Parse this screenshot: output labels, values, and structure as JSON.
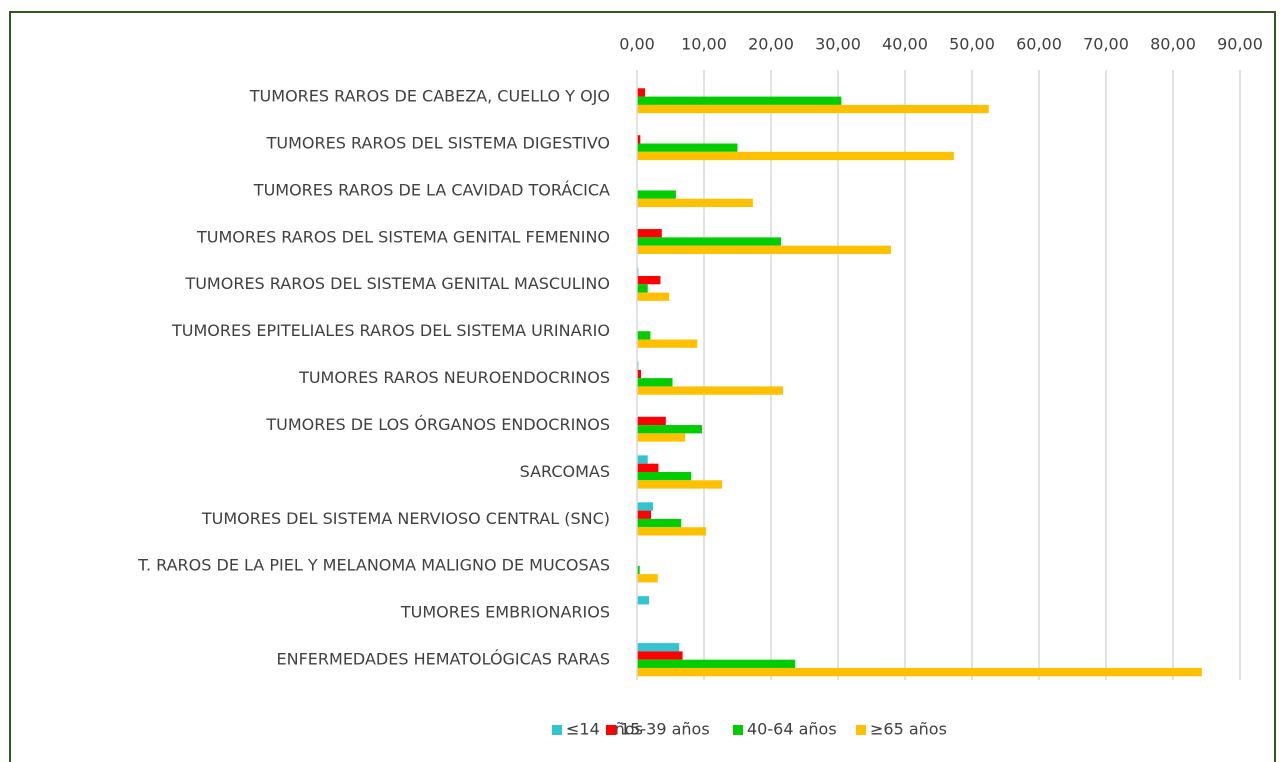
{
  "chart_data": {
    "type": "hbar",
    "categories": [
      "TUMORES RAROS DE CABEZA, CUELLO Y OJO",
      "TUMORES RAROS DEL SISTEMA DIGESTIVO",
      "TUMORES RAROS DE LA CAVIDAD TORÁCICA",
      "TUMORES RAROS DEL SISTEMA GENITAL FEMENINO",
      "TUMORES RAROS DEL SISTEMA GENITAL MASCULINO",
      "TUMORES EPITELIALES RAROS DEL SISTEMA URINARIO",
      "TUMORES RAROS NEUROENDOCRINOS",
      "TUMORES DE LOS ÓRGANOS ENDOCRINOS",
      "SARCOMAS",
      "TUMORES DEL SISTEMA NERVIOSO CENTRAL (SNC)",
      "T. RAROS DE LA PIEL Y MELANOMA MALIGNO DE MUCOSAS",
      "TUMORES EMBRIONARIOS",
      "ENFERMEDADES HEMATOLÓGICAS RARAS"
    ],
    "series": [
      {
        "name": "≤14 años",
        "color": "#33c5cf",
        "values": [
          0,
          0,
          0,
          0,
          0.2,
          0,
          0.2,
          0,
          1.6,
          2.4,
          0,
          1.8,
          6.3
        ]
      },
      {
        "name": "15-39 años",
        "color": "#ff0000",
        "values": [
          1.2,
          0.5,
          0,
          3.7,
          3.5,
          0,
          0.6,
          4.3,
          3.2,
          2.1,
          0,
          0,
          6.8
        ]
      },
      {
        "name": "40-64 años",
        "color": "#00cc00",
        "values": [
          30.5,
          15,
          5.8,
          21.5,
          1.6,
          2,
          5.3,
          9.7,
          8.1,
          6.6,
          0.4,
          0,
          23.6
        ]
      },
      {
        "name": "≥65 años",
        "color": "#ffc000",
        "values": [
          52.5,
          47.3,
          17.3,
          37.9,
          4.8,
          9,
          21.8,
          7.2,
          12.7,
          10.3,
          3.1,
          0,
          84.3
        ]
      }
    ],
    "xlim": [
      0,
      90
    ],
    "xticks": [
      {
        "value": 0,
        "label": "0,00"
      },
      {
        "value": 10,
        "label": "10,00"
      },
      {
        "value": 20,
        "label": "20,00"
      },
      {
        "value": 30,
        "label": "30,00"
      },
      {
        "value": 40,
        "label": "40,00"
      },
      {
        "value": 50,
        "label": "50,00"
      },
      {
        "value": 60,
        "label": "60,00"
      },
      {
        "value": 70,
        "label": "70,00"
      },
      {
        "value": 80,
        "label": "80,00"
      },
      {
        "value": 90,
        "label": "90,00"
      }
    ],
    "grid": true,
    "legend": "bottom"
  }
}
